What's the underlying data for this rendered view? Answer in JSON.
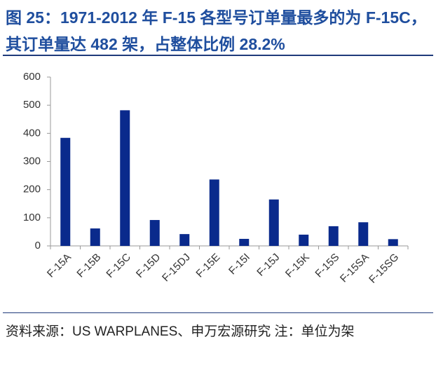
{
  "chart_data": {
    "type": "bar",
    "title": "图 25：1971-2012 年 F-15 各型号订单量最多的为 F-15C，其订单量达 482 架，占整体比例 28.2%",
    "categories": [
      "F-15A",
      "F-15B",
      "F-15C",
      "F-15D",
      "F-15DJ",
      "F-15E",
      "F-15I",
      "F-15J",
      "F-15K",
      "F-15S",
      "F-15SA",
      "F-15SG"
    ],
    "values": [
      384,
      62,
      482,
      92,
      42,
      236,
      25,
      165,
      40,
      70,
      84,
      24
    ],
    "color": "#0a2a8c",
    "ylim": [
      0,
      600
    ],
    "yticks": [
      0,
      100,
      200,
      300,
      400,
      500,
      600
    ],
    "source": "资料来源：US WARPLANES、申万宏源研究 注：单位为架"
  }
}
